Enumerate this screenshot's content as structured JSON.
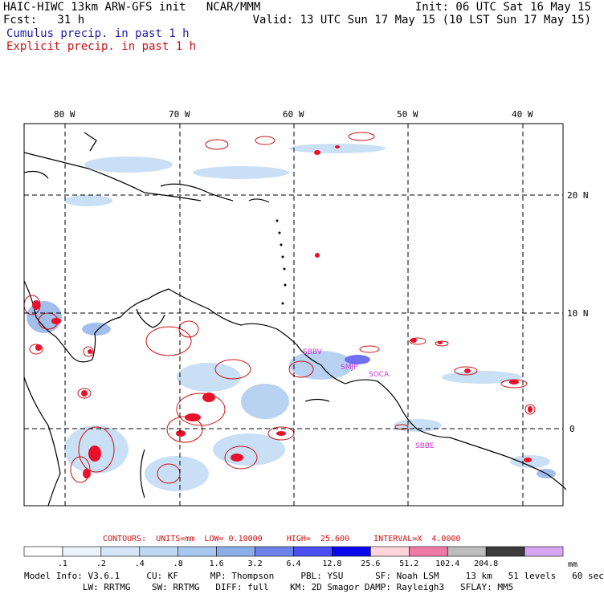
{
  "header": {
    "line1_left": "HAIC-HIWC 13km ARW-GFS init   NCAR/MMM",
    "line1_right": "Init: 06 UTC Sat 16 May 15",
    "line2_left": "Fcst:   31 h",
    "line2_right": "Valid: 13 UTC Sun 17 May 15 (10 LST Sun 17 May 15)",
    "line3": "Cumulus precip. in past 1 h",
    "line4": "Explicit precip. in past 1 h"
  },
  "map": {
    "lon_labels": [
      "80 W",
      "70 W",
      "60 W",
      "50 W",
      "40 W"
    ],
    "lat_labels": [
      "20 N",
      "10 N",
      "0"
    ],
    "station_labels": [
      "SBBV",
      "SMJP",
      "SOCA",
      "SBBE"
    ],
    "colors": {
      "coast": "#000000",
      "grid": "#000000",
      "explicit": "#d01010",
      "station": "#cc33cc"
    }
  },
  "contours": {
    "label": "CONTOURS:  UNITS=mm  LOW= 0.10000     HIGH=  25.600     INTERVAL=X  4.0000"
  },
  "colorbar": {
    "unit": "mm",
    "labels": [
      ".1",
      ".2",
      ".4",
      ".8",
      "1.6",
      "3.2",
      "6.4",
      "12.8",
      "25.6",
      "51.2",
      "102.4",
      "204.8"
    ],
    "colors": [
      "#ffffff",
      "#eaf2fc",
      "#d4e6f8",
      "#bcd8f3",
      "#a8c8ef",
      "#8caee8",
      "#6e82e8",
      "#4b4ef0",
      "#0b08f0",
      "#ffd4dc",
      "#f07aa6",
      "#bdbdbd",
      "#3c3c3c",
      "#d6a6f4"
    ]
  },
  "footer": {
    "line1": "Model Info: V3.6.1     CU: KF      MP: Thompson     PBL: YSU      SF: Noah LSM     13 km   51 levels   60 sec",
    "line2": "           LW: RRTMG    SW: RRTMG   DIFF: full    KM: 2D Smagor DAMP: Rayleigh3   SFLAY: MM5"
  }
}
